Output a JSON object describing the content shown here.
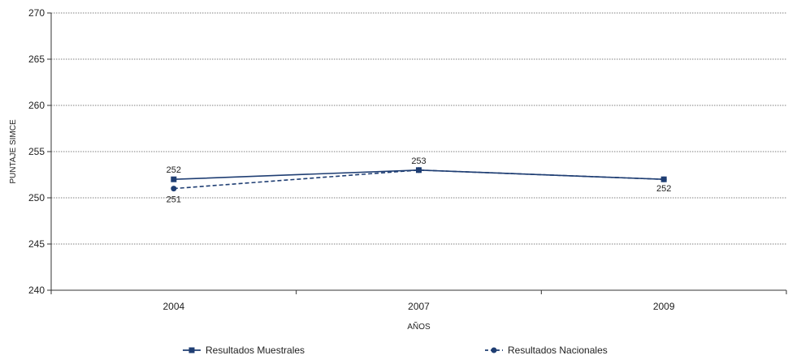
{
  "chart_data": {
    "type": "line",
    "title": "",
    "xlabel": "AÑOS",
    "ylabel": "PUNTAJE SIMCE",
    "categories": [
      "2004",
      "2007",
      "2009"
    ],
    "ylim": [
      240,
      270
    ],
    "yticks": [
      240,
      245,
      250,
      255,
      260,
      265,
      270
    ],
    "grid": true,
    "legend_position": "bottom",
    "series": [
      {
        "name": "Resultados Muestrales",
        "values": [
          252,
          253,
          252
        ],
        "labels": [
          "252",
          "253",
          "252"
        ],
        "color": "#1f3e73",
        "line_style": "solid",
        "marker": "square"
      },
      {
        "name": "Resultados Nacionales",
        "values": [
          251,
          253,
          252
        ],
        "labels": [
          "251",
          "",
          ""
        ],
        "color": "#1f3e73",
        "line_style": "dashed",
        "marker": "circle"
      }
    ]
  }
}
